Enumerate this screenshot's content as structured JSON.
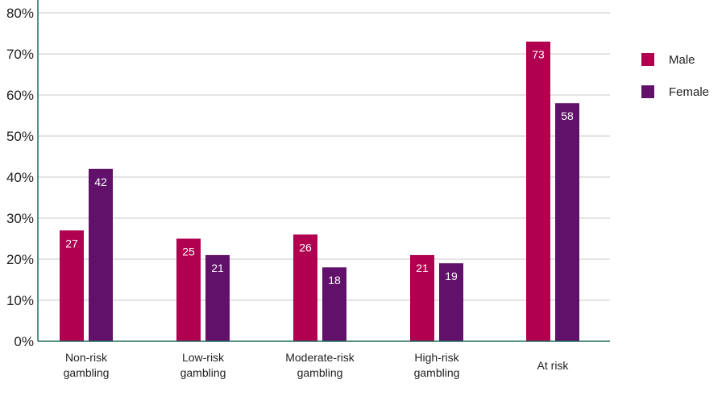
{
  "chart_data": {
    "type": "bar",
    "categories": [
      [
        "Non-risk",
        "gambling"
      ],
      [
        "Low-risk",
        "gambling"
      ],
      [
        "Moderate-risk",
        "gambling"
      ],
      [
        "High-risk",
        "gambling"
      ],
      [
        "At risk"
      ]
    ],
    "series": [
      {
        "name": "Male",
        "color": "#B0004F",
        "values": [
          27,
          25,
          26,
          21,
          73
        ],
        "labels": [
          "27",
          "25",
          "26",
          "21",
          "73"
        ]
      },
      {
        "name": "Female",
        "color": "#61116A",
        "values": [
          42,
          21,
          18,
          19,
          58
        ],
        "labels": [
          "42",
          "21",
          "18",
          "19",
          "58"
        ]
      }
    ],
    "yticks": [
      "0%",
      "10%",
      "20%",
      "30%",
      "40%",
      "50%",
      "60%",
      "70%",
      "80%"
    ],
    "ylim": [
      0,
      80
    ],
    "grid": true,
    "axis_color": "#1E6B5A",
    "grid_color": "#C8C8C8",
    "legend_position": "right"
  }
}
